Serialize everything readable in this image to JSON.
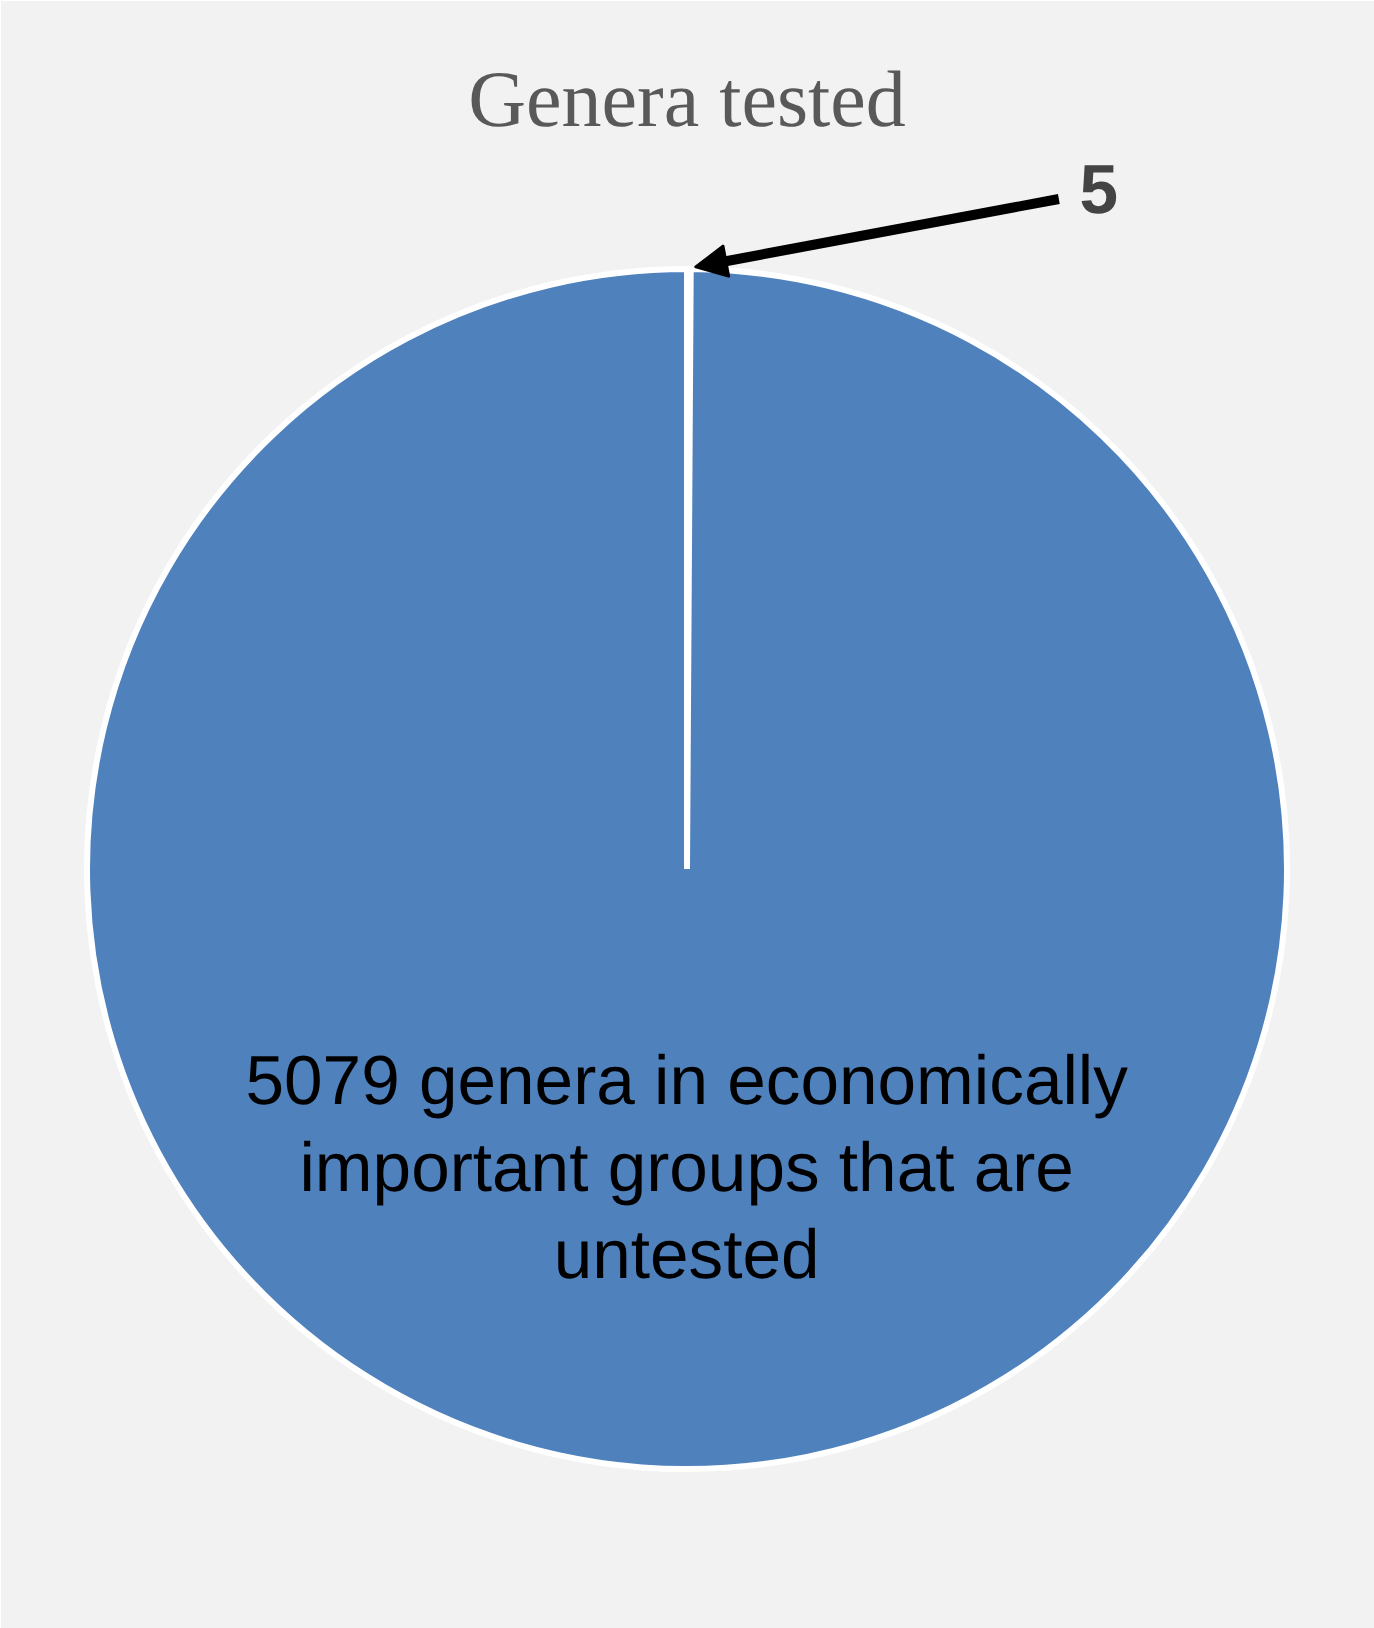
{
  "chart_data": {
    "type": "pie",
    "title": "Genera tested",
    "categories": [
      null,
      null
    ],
    "values": [
      5,
      5079
    ],
    "colors": [
      "#4f81bd",
      "#4f81bd"
    ],
    "value_labels": [
      "5",
      "5079 genera in economically important groups that are untested"
    ]
  }
}
